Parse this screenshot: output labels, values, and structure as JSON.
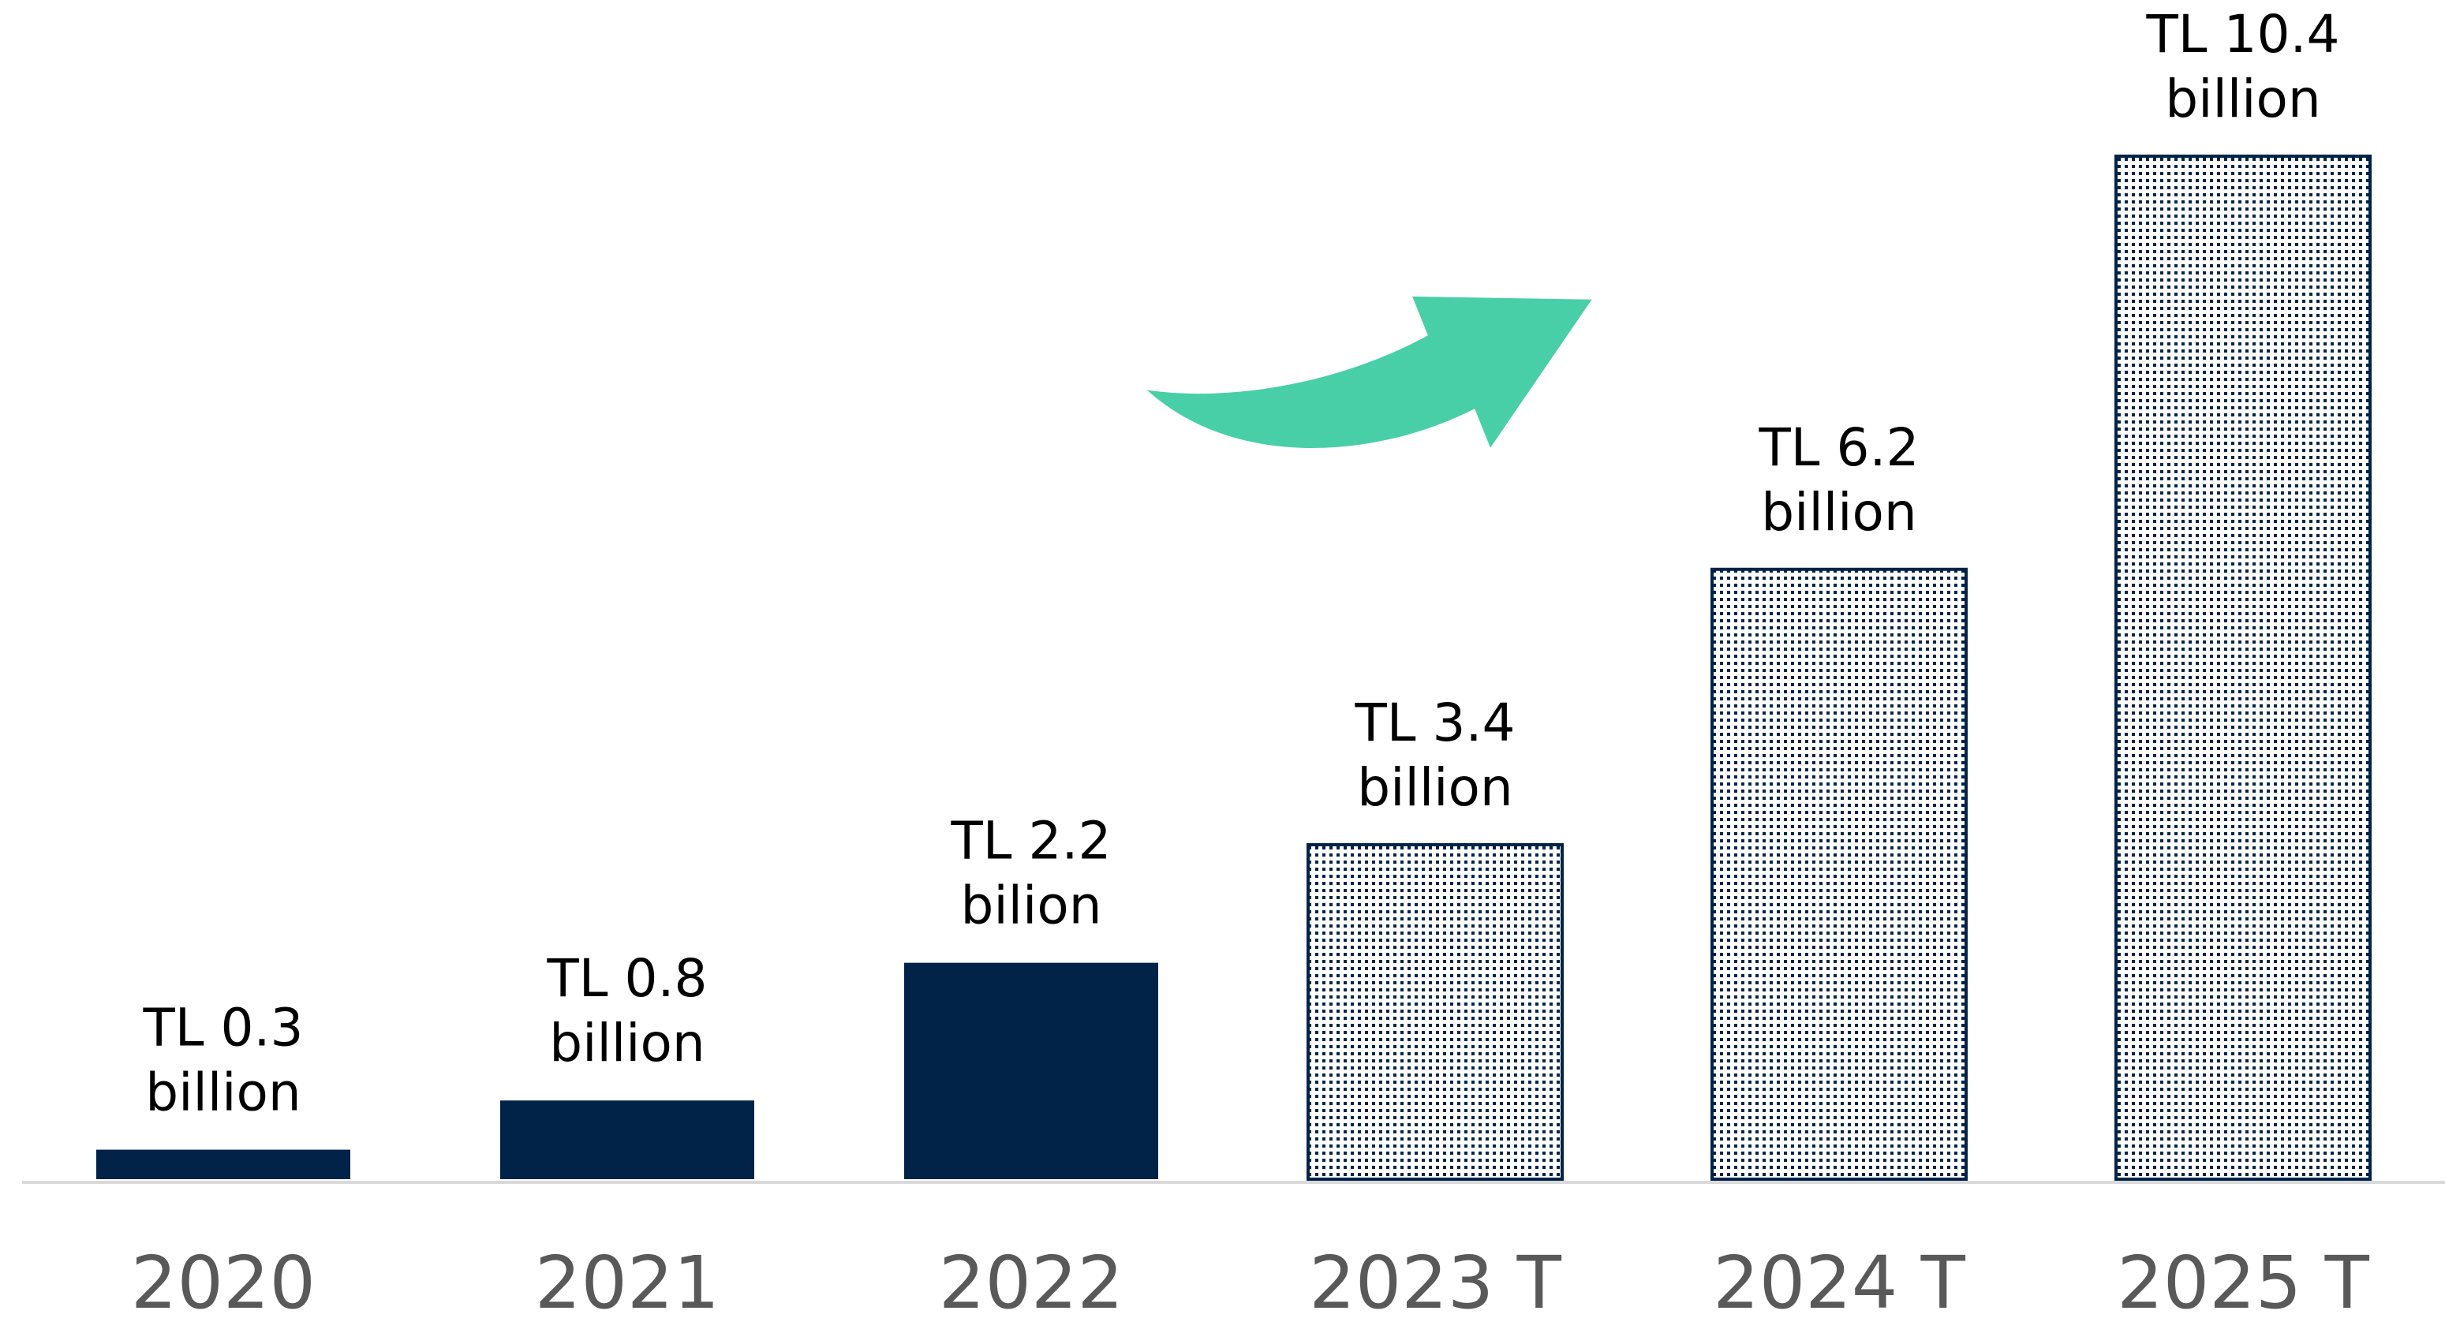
{
  "chart_data": {
    "type": "bar",
    "categories": [
      "2020",
      "2021",
      "2022",
      "2023 T",
      "2024 T",
      "2025 T"
    ],
    "values": [
      0.3,
      0.8,
      2.2,
      3.4,
      6.2,
      10.4
    ],
    "value_labels": [
      [
        "TL 0.3",
        "billion"
      ],
      [
        "TL 0.8",
        "billion"
      ],
      [
        "TL 2.2",
        "bilion"
      ],
      [
        "TL 3.4",
        "billion"
      ],
      [
        "TL 6.2",
        "billion"
      ],
      [
        "TL 10.4",
        "billion"
      ]
    ],
    "patterns": [
      "solid",
      "solid",
      "solid",
      "dotted",
      "dotted",
      "dotted"
    ],
    "color": "#002347"
  }
}
